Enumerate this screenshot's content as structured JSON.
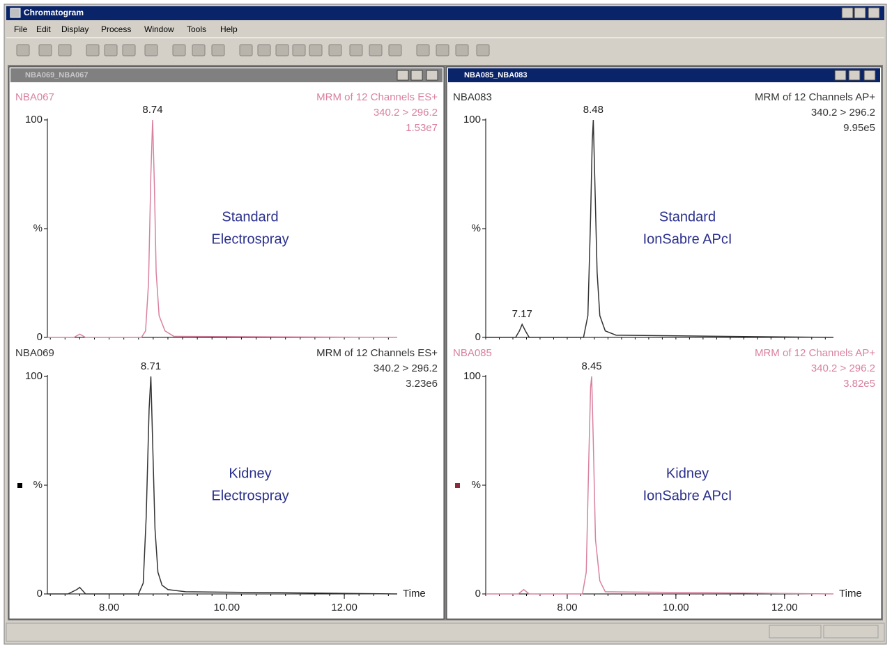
{
  "window": {
    "title": "Chromatogram",
    "menu": [
      "File",
      "Edit",
      "Display",
      "Process",
      "Window",
      "Tools",
      "Help"
    ]
  },
  "panels": [
    {
      "title": "NBA069_NBA067"
    },
    {
      "title": "NBA085_NBA083"
    }
  ],
  "chart_data": [
    {
      "type": "line",
      "sample": "NBA067",
      "header": [
        "MRM of 12 Channels ES+",
        "340.2 > 296.2",
        "1.53e7"
      ],
      "annotation": [
        "Standard",
        "Electrospray"
      ],
      "color": "#d9819f",
      "peak_labels": [
        8.74
      ],
      "xlim": [
        6.95,
        12.9
      ],
      "ylim": [
        0,
        100
      ],
      "yticks": [
        0,
        {
          "value": 50,
          "label": "%"
        },
        100
      ],
      "x": [
        6.95,
        7.4,
        7.5,
        7.6,
        8.55,
        8.62,
        8.67,
        8.71,
        8.74,
        8.77,
        8.8,
        8.85,
        8.95,
        9.1,
        12.9
      ],
      "values": [
        0,
        0,
        1.5,
        0,
        0,
        3,
        25,
        75,
        100,
        70,
        30,
        10,
        3,
        0.5,
        0
      ]
    },
    {
      "type": "line",
      "sample": "NBA069",
      "header": [
        "MRM of 12 Channels ES+",
        "340.2 > 296.2",
        "3.23e6"
      ],
      "annotation": [
        "Kidney",
        "Electrospray"
      ],
      "color": "#333333",
      "peak_labels": [
        8.71
      ],
      "xlim": [
        6.95,
        12.9
      ],
      "ylim": [
        0,
        100
      ],
      "yticks": [
        0,
        {
          "value": 50,
          "label": "%"
        },
        100
      ],
      "xticks": [
        {
          "value": 8,
          "label": "8.00"
        },
        {
          "value": 10,
          "label": "10.00"
        },
        {
          "value": 12,
          "label": "12.00"
        }
      ],
      "xlabel": "Time",
      "x": [
        6.95,
        7.3,
        7.45,
        7.5,
        7.6,
        8.5,
        8.58,
        8.63,
        8.68,
        8.71,
        8.74,
        8.78,
        8.83,
        8.9,
        9.0,
        9.3,
        12.9
      ],
      "values": [
        0,
        0,
        2,
        3,
        0,
        0,
        5,
        35,
        85,
        100,
        70,
        30,
        10,
        4,
        2,
        1,
        0
      ]
    },
    {
      "type": "line",
      "sample": "NBA083",
      "header": [
        "MRM of 12 Channels AP+",
        "340.2 > 296.2",
        "9.95e5"
      ],
      "annotation": [
        "Standard",
        "IonSabre APcI"
      ],
      "color": "#333333",
      "peak_labels": [
        7.17,
        8.48
      ],
      "xlim": [
        6.5,
        12.9
      ],
      "ylim": [
        0,
        100
      ],
      "yticks": [
        0,
        {
          "value": 50,
          "label": "%"
        },
        100
      ],
      "x": [
        6.5,
        7.05,
        7.12,
        7.17,
        7.23,
        7.3,
        8.3,
        8.38,
        8.43,
        8.46,
        8.48,
        8.51,
        8.55,
        8.6,
        8.7,
        8.9,
        12.9
      ],
      "values": [
        0,
        0,
        3,
        6,
        3,
        0,
        0,
        10,
        55,
        90,
        100,
        70,
        30,
        10,
        3,
        1,
        0
      ]
    },
    {
      "type": "line",
      "sample": "NBA085",
      "header": [
        "MRM of 12 Channels AP+",
        "340.2 > 296.2",
        "3.82e5"
      ],
      "annotation": [
        "Kidney",
        "IonSabre APcI"
      ],
      "color": "#d9819f",
      "peak_labels": [
        8.45
      ],
      "xlim": [
        6.5,
        12.9
      ],
      "ylim": [
        0,
        100
      ],
      "yticks": [
        0,
        {
          "value": 50,
          "label": "%"
        },
        100
      ],
      "xticks": [
        {
          "value": 8,
          "label": "8.00"
        },
        {
          "value": 10,
          "label": "10.00"
        },
        {
          "value": 12,
          "label": "12.00"
        }
      ],
      "xlabel": "Time",
      "x": [
        6.5,
        7.1,
        7.2,
        7.3,
        8.28,
        8.35,
        8.4,
        8.43,
        8.45,
        8.48,
        8.52,
        8.6,
        8.7,
        12.9
      ],
      "values": [
        0,
        0,
        2,
        0,
        0,
        10,
        65,
        95,
        100,
        70,
        25,
        6,
        1,
        0
      ]
    }
  ]
}
